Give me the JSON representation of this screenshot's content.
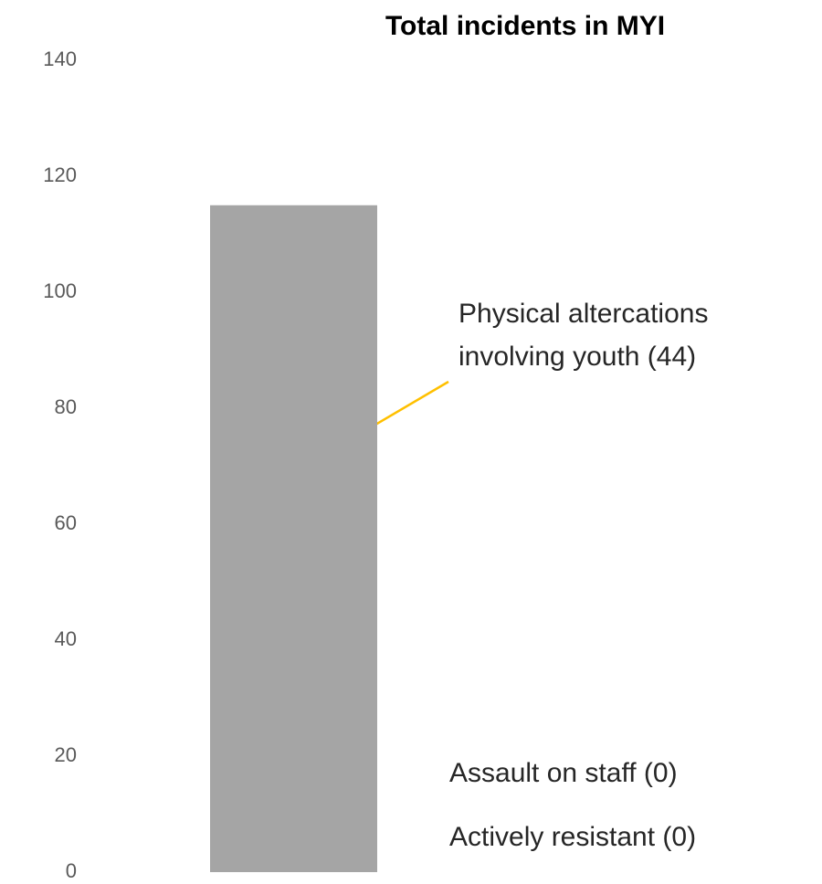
{
  "chart_data": {
    "type": "bar",
    "title": "Total incidents in MYI",
    "categories": [
      null
    ],
    "values": [
      115
    ],
    "color": "#a5a5a5",
    "ylim": [
      0,
      140
    ],
    "yticks": [
      0,
      20,
      40,
      60,
      80,
      100,
      120,
      140
    ],
    "grid": false,
    "annotations": [
      [
        "Physical altercations",
        "involving youth (44)"
      ],
      [
        "Assault on staff  (0)"
      ],
      [
        "Actively resistant (0)"
      ]
    ]
  }
}
